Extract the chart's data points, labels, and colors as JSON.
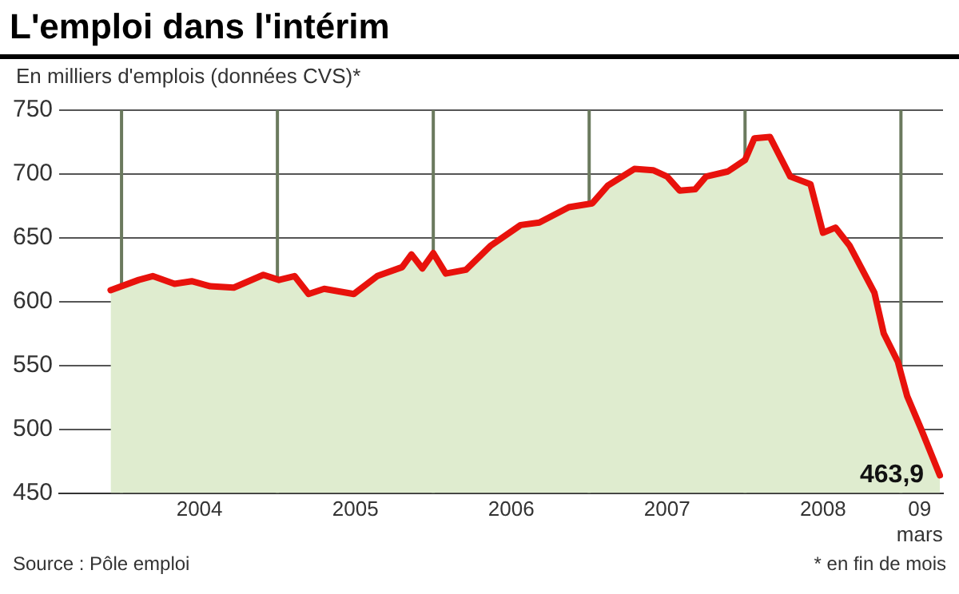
{
  "chart_data": {
    "type": "area",
    "title": "L'emploi dans l'intérim",
    "ylabel": "En milliers d'emplois (données CVS)*",
    "annotations": [
      "Source : Pôle emploi",
      "* en fin de mois"
    ],
    "series": [
      {
        "color": "#e8120c",
        "x": [
          2003.93,
          2004.11,
          2004.2,
          2004.34,
          2004.45,
          2004.57,
          2004.72,
          2004.91,
          2005.01,
          2005.11,
          2005.2,
          2005.3,
          2005.49,
          2005.64,
          2005.8,
          2005.86,
          2005.93,
          2006.0,
          2006.08,
          2006.21,
          2006.37,
          2006.56,
          2006.68,
          2006.87,
          2007.02,
          2007.12,
          2007.29,
          2007.41,
          2007.5,
          2007.58,
          2007.68,
          2007.75,
          2007.89,
          2008.0,
          2008.06,
          2008.16,
          2008.29,
          2008.42,
          2008.5,
          2008.58,
          2008.67,
          2008.83,
          2008.89,
          2008.98,
          2009.04,
          2009.13,
          2009.25
        ],
        "values": [
          609,
          617,
          620,
          614,
          616,
          612,
          611,
          621,
          617,
          620,
          606,
          610,
          606,
          620,
          627,
          637,
          626,
          638,
          622,
          625,
          644,
          660,
          662,
          674,
          677,
          691,
          704,
          703,
          698,
          687,
          688,
          698,
          702,
          711,
          728,
          729,
          698,
          692,
          654,
          658,
          644,
          607,
          575,
          553,
          526,
          500,
          463.9
        ],
        "value_labels": [
          null,
          null,
          null,
          null,
          null,
          null,
          null,
          null,
          null,
          null,
          null,
          null,
          null,
          null,
          null,
          null,
          null,
          null,
          null,
          null,
          null,
          null,
          null,
          null,
          null,
          null,
          null,
          null,
          null,
          null,
          null,
          null,
          null,
          null,
          null,
          null,
          null,
          null,
          null,
          null,
          null,
          null,
          null,
          null,
          null,
          null,
          "463,9"
        ]
      }
    ],
    "xlim": [
      2003.6,
      2009.27
    ],
    "xticks": [
      {
        "value": 2004.5,
        "label": "2004"
      },
      {
        "value": 2005.5,
        "label": "2005"
      },
      {
        "value": 2006.5,
        "label": "2006"
      },
      {
        "value": 2007.5,
        "label": "2007"
      },
      {
        "value": 2008.5,
        "label": "2008"
      },
      {
        "value": 2009.12,
        "label": "09 mars"
      }
    ],
    "ylim": [
      450,
      750
    ],
    "yticks": [
      450,
      500,
      550,
      600,
      650,
      700,
      750
    ],
    "ref_lines": [
      {
        "axis": "x",
        "value": 2004,
        "color": "#6b7a5e"
      },
      {
        "axis": "x",
        "value": 2005,
        "color": "#6b7a5e"
      },
      {
        "axis": "x",
        "value": 2006,
        "color": "#6b7a5e"
      },
      {
        "axis": "x",
        "value": 2007,
        "color": "#6b7a5e"
      },
      {
        "axis": "x",
        "value": 2008,
        "color": "#6b7a5e"
      },
      {
        "axis": "x",
        "value": 2009,
        "color": "#6b7a5e"
      }
    ],
    "grid": "y",
    "legend": false
  }
}
